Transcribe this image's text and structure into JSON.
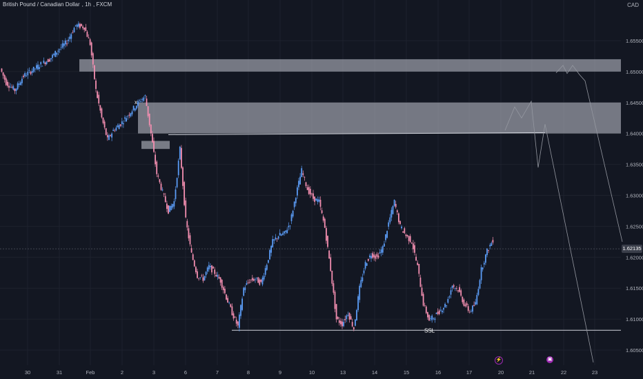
{
  "header": {
    "symbol": "British Pound / Canadian Dollar",
    "interval": "1h",
    "exchange": "FXCM",
    "currency": "CAD"
  },
  "price_axis": {
    "labels": [
      "1.65500",
      "1.65000",
      "1.64500",
      "1.64000",
      "1.63500",
      "1.63000",
      "1.62500",
      "1.62000",
      "1.61500",
      "1.61000",
      "1.60500"
    ],
    "current_price": "1.62135"
  },
  "time_axis": {
    "labels": [
      "30",
      "31",
      "Feb",
      "2",
      "3",
      "6",
      "7",
      "8",
      "9",
      "10",
      "13",
      "14",
      "15",
      "16",
      "17",
      "20",
      "21",
      "22",
      "23"
    ]
  },
  "annotations": {
    "ssl_label": "SSL",
    "x_marker": "x"
  },
  "icons": [
    "flash-icon",
    "economic-event-icon"
  ],
  "colors": {
    "background": "#131722",
    "candle_up": "#5b9cf6",
    "candle_down": "#f48fb1",
    "zone": "#b2b5be",
    "line": "#d1d4dc"
  },
  "chart_data": {
    "type": "candlestick",
    "ylim": [
      1.6,
      1.657
    ],
    "price_levels": [
      {
        "name": "",
        "value": 1.6398
      },
      {
        "name": "SSL",
        "value": 1.6082
      }
    ],
    "zones": [
      {
        "low": 1.65,
        "high": 1.652
      },
      {
        "low": 1.64,
        "high": 1.645
      },
      {
        "low": 1.6375,
        "high": 1.6388
      }
    ],
    "path_points": [
      [
        0,
        1.6505
      ],
      [
        4,
        1.6482
      ],
      [
        10,
        1.647
      ],
      [
        16,
        1.6493
      ],
      [
        22,
        1.6502
      ],
      [
        28,
        1.6512
      ],
      [
        34,
        1.652
      ],
      [
        40,
        1.6535
      ],
      [
        46,
        1.6548
      ],
      [
        52,
        1.6575
      ],
      [
        58,
        1.6572
      ],
      [
        62,
        1.6545
      ],
      [
        66,
        1.647
      ],
      [
        70,
        1.6425
      ],
      [
        74,
        1.639
      ],
      [
        78,
        1.6405
      ],
      [
        84,
        1.6418
      ],
      [
        90,
        1.6435
      ],
      [
        96,
        1.6452
      ],
      [
        100,
        1.646
      ],
      [
        104,
        1.64
      ],
      [
        108,
        1.6335
      ],
      [
        112,
        1.6305
      ],
      [
        116,
        1.6275
      ],
      [
        120,
        1.629
      ],
      [
        124,
        1.6375
      ],
      [
        128,
        1.626
      ],
      [
        132,
        1.6205
      ],
      [
        136,
        1.617
      ],
      [
        140,
        1.6165
      ],
      [
        144,
        1.6185
      ],
      [
        148,
        1.6175
      ],
      [
        152,
        1.6162
      ],
      [
        156,
        1.6135
      ],
      [
        160,
        1.611
      ],
      [
        164,
        1.6088
      ],
      [
        168,
        1.615
      ],
      [
        172,
        1.6162
      ],
      [
        176,
        1.6165
      ],
      [
        180,
        1.6158
      ],
      [
        184,
        1.619
      ],
      [
        188,
        1.6225
      ],
      [
        192,
        1.6235
      ],
      [
        196,
        1.6238
      ],
      [
        200,
        1.6255
      ],
      [
        204,
        1.63
      ],
      [
        208,
        1.634
      ],
      [
        212,
        1.631
      ],
      [
        216,
        1.6295
      ],
      [
        220,
        1.629
      ],
      [
        224,
        1.6248
      ],
      [
        228,
        1.618
      ],
      [
        232,
        1.61
      ],
      [
        236,
        1.6092
      ],
      [
        240,
        1.611
      ],
      [
        244,
        1.6085
      ],
      [
        248,
        1.615
      ],
      [
        252,
        1.619
      ],
      [
        256,
        1.6205
      ],
      [
        260,
        1.62
      ],
      [
        264,
        1.6215
      ],
      [
        268,
        1.6255
      ],
      [
        272,
        1.629
      ],
      [
        276,
        1.625
      ],
      [
        280,
        1.6235
      ],
      [
        284,
        1.6225
      ],
      [
        288,
        1.6185
      ],
      [
        292,
        1.6125
      ],
      [
        296,
        1.6098
      ],
      [
        300,
        1.6105
      ],
      [
        304,
        1.6115
      ],
      [
        308,
        1.6125
      ],
      [
        312,
        1.6155
      ],
      [
        316,
        1.6148
      ],
      [
        320,
        1.6125
      ],
      [
        324,
        1.6112
      ],
      [
        328,
        1.6125
      ],
      [
        332,
        1.618
      ],
      [
        336,
        1.621
      ],
      [
        340,
        1.6228
      ]
    ],
    "projection_segments": [
      [
        [
          732,
          1.6405
        ],
        [
          746,
          1.6443
        ],
        [
          756,
          1.6425
        ],
        [
          770,
          1.6452
        ],
        [
          780,
          1.6345
        ],
        [
          790,
          1.6415
        ],
        [
          860,
          1.603
        ]
      ],
      [
        [
          806,
          1.6498
        ],
        [
          816,
          1.651
        ],
        [
          822,
          1.6497
        ],
        [
          830,
          1.651
        ],
        [
          840,
          1.6495
        ],
        [
          848,
          1.6485
        ],
        [
          902,
          1.6225
        ]
      ]
    ]
  }
}
